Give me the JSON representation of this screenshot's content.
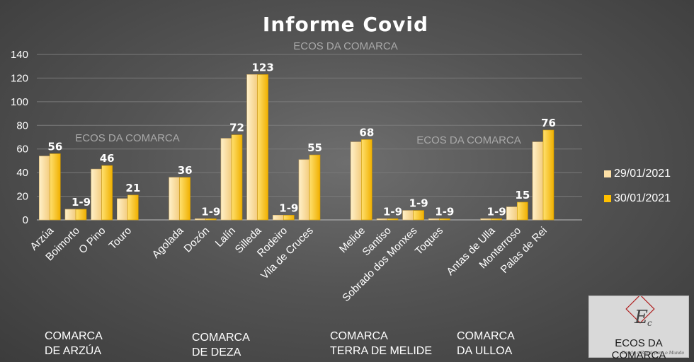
{
  "chart_data": {
    "type": "bar",
    "title": "Informe Covid",
    "watermark": "ECOS DA COMARCA",
    "ylim": [
      0,
      140
    ],
    "yticks": [
      0,
      20,
      40,
      60,
      80,
      100,
      120,
      140
    ],
    "grid": true,
    "legend_position": "right",
    "categories": [
      "Arzúa",
      "Boimorto",
      "O Pino",
      "Touro",
      "Agolada",
      "Dozón",
      "Lalín",
      "Silleda",
      "Rodeiro",
      "Vila de Cruces",
      "Melide",
      "Santiso",
      "Sobrado dos Monxes",
      "Toques",
      "Antas de Ulla",
      "Monterroso",
      "Palas de Rei"
    ],
    "series": [
      {
        "name": "29/01/2021",
        "color": "#fde0a6",
        "values": [
          54,
          9,
          43,
          18,
          36,
          1,
          69,
          123,
          4,
          51,
          66,
          1,
          8,
          1,
          1,
          11,
          66
        ]
      },
      {
        "name": "30/01/2021",
        "color": "#ffc000",
        "values": [
          56,
          9,
          46,
          21,
          36,
          1,
          72,
          123,
          4,
          55,
          68,
          1,
          8,
          1,
          1,
          15,
          76
        ]
      }
    ],
    "data_labels": [
      "56",
      "1-9",
      "46",
      "21",
      "36",
      "1-9",
      "72",
      "123",
      "1-9",
      "55",
      "68",
      "1-9",
      "1-9",
      "1-9",
      "1-9",
      "15",
      "76"
    ],
    "groups": [
      {
        "line1": "COMARCA",
        "line2": "DE ARZÚA"
      },
      {
        "line1": "COMARCA",
        "line2": "DE DEZA"
      },
      {
        "line1": "COMARCA",
        "line2": "TERRA DE MELIDE"
      },
      {
        "line1": "COMARCA",
        "line2": "DA ULLOA"
      }
    ]
  },
  "logo": {
    "name": "ECOS DA COMARCA",
    "tagline": "Dende o Rural para o Mundo"
  }
}
